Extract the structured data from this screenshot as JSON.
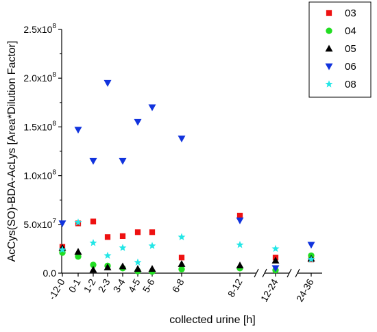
{
  "chart_data": {
    "type": "scatter",
    "xlabel": "collected urine [h]",
    "ylabel": "AcCys(SO)-BDA-AcLys [Area*Dilution Factor]",
    "ylim": [
      0,
      250000000
    ],
    "yticks": [
      {
        "value": 0,
        "mantissa": "0.0",
        "exp": ""
      },
      {
        "value": 50000000,
        "mantissa": "5.0x10",
        "exp": "7"
      },
      {
        "value": 100000000,
        "mantissa": "1.0x10",
        "exp": "8"
      },
      {
        "value": 150000000,
        "mantissa": "1.5x10",
        "exp": "8"
      },
      {
        "value": 200000000,
        "mantissa": "2.0x10",
        "exp": "8"
      },
      {
        "value": 250000000,
        "mantissa": "2.5x10",
        "exp": "8"
      }
    ],
    "categories": [
      "-12-0",
      "0-1",
      "1-2",
      "2-3",
      "3-4",
      "4-5",
      "5-6",
      "6-8",
      "8-12",
      "12-24",
      "24-36"
    ],
    "axis_breaks": [
      "8-12|12-24",
      "12-24|24-36"
    ],
    "grid": false,
    "legend": "top-right",
    "series": [
      {
        "name": "03",
        "marker": "square",
        "color": "#ee1111",
        "values": [
          27000000,
          51000000,
          53000000,
          37000000,
          38000000,
          42000000,
          42000000,
          16000000,
          59000000,
          16000000,
          14000000
        ]
      },
      {
        "name": "04",
        "marker": "circle",
        "color": "#22dd22",
        "values": [
          21000000,
          17000000,
          8500000,
          7500000,
          5000000,
          2000000,
          1500000,
          4000000,
          5000000,
          3000000,
          18000000
        ]
      },
      {
        "name": "05",
        "marker": "triangle-up",
        "color": "#000000",
        "values": [
          26000000,
          22000000,
          3500000,
          6000000,
          7000000,
          4500000,
          4500000,
          9500000,
          8000000,
          13000000,
          15000000
        ]
      },
      {
        "name": "06",
        "marker": "triangle-down",
        "color": "#1133dd",
        "values": [
          51000000,
          147000000,
          115000000,
          195000000,
          115000000,
          155000000,
          170000000,
          138000000,
          54000000,
          5000000,
          29000000
        ]
      },
      {
        "name": "08",
        "marker": "star",
        "color": "#22e6e6",
        "values": [
          24000000,
          52000000,
          31000000,
          18000000,
          26000000,
          11000000,
          28000000,
          37000000,
          29000000,
          25000000,
          14000000
        ]
      }
    ]
  }
}
